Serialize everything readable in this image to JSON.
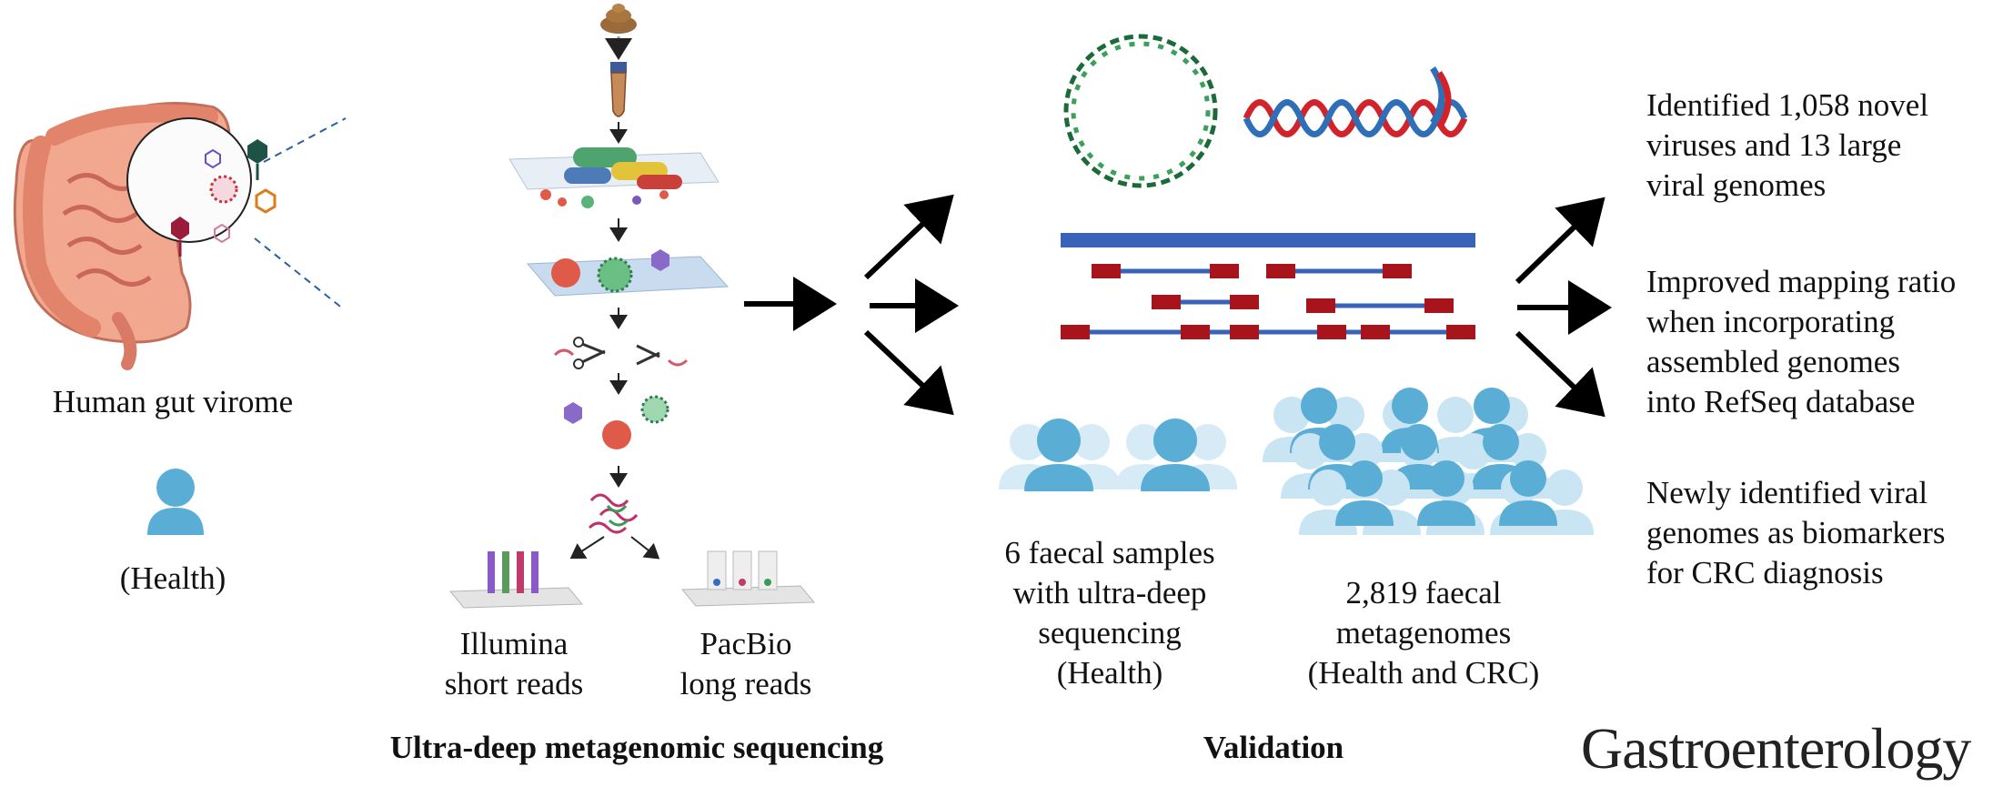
{
  "left_panel": {
    "title": "Human gut virome",
    "person_label": "(Health)"
  },
  "sequencing": {
    "illumina": [
      "Illumina",
      "short reads"
    ],
    "pacbio": [
      "PacBio",
      "long reads"
    ],
    "caption": "Ultra-deep metagenomic sequencing"
  },
  "validation": {
    "samples": [
      "6 faecal samples",
      "with ultra-deep",
      "sequencing",
      "(Health)"
    ],
    "metagenomes": [
      "2,819 faecal",
      "metagenomes",
      "(Health and CRC)"
    ],
    "caption": "Validation"
  },
  "results": {
    "r1": [
      "Identified 1,058 novel",
      "viruses and 13 large",
      "viral genomes"
    ],
    "r2": [
      "Improved mapping ratio",
      "when incorporating",
      "assembled genomes",
      "into RefSeq database"
    ],
    "r3": [
      "Newly identified viral",
      "genomes as biomarkers",
      "for CRC diagnosis"
    ]
  },
  "journal": "Gastroenterology",
  "colors": {
    "person_blue": "#5aaed6",
    "person_light": "#c9e4f2",
    "read_blue": "#3a62b8",
    "read_red": "#a8141c",
    "dna_green": "#2e8b57",
    "dna_red": "#d2232a"
  },
  "icons": [
    "intestine-icon",
    "virus-icon",
    "stool-icon",
    "sample-tube-icon",
    "bacteria-icon",
    "scissors-icon",
    "dna-fragment-icon",
    "flow-cell-icon",
    "circular-genome-icon",
    "linear-genome-icon",
    "person-icon",
    "crowd-icon"
  ]
}
